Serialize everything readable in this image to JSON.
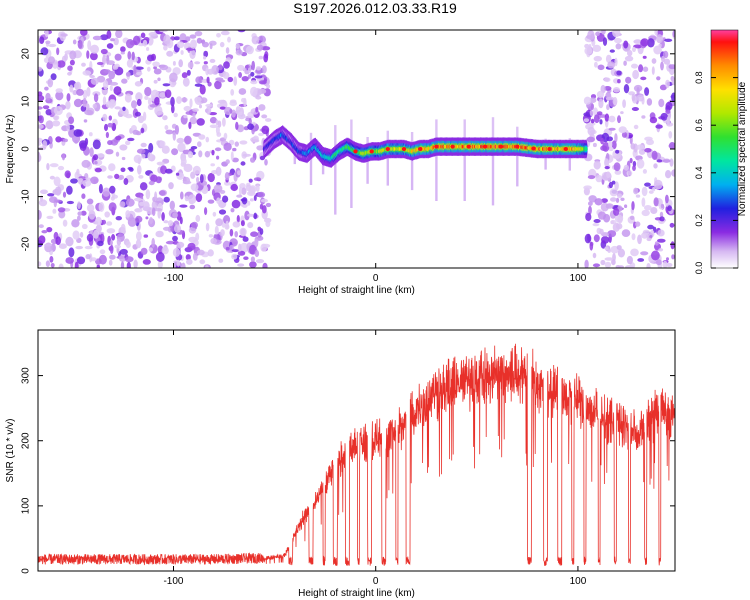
{
  "title": "S197.2026.012.03.33.R19",
  "colors": {
    "snr_line": "#e8302a",
    "frame": "#000000"
  },
  "chart_data": [
    {
      "type": "heatmap",
      "name": "spectrogram",
      "xlabel": "Height of straight line (km)",
      "ylabel": "Frequency (Hz)",
      "xlim": [
        -167,
        148
      ],
      "ylim": [
        -25,
        25
      ],
      "xticks": [
        -100,
        0,
        100
      ],
      "xticklabels": [
        "-100",
        "0",
        "100"
      ],
      "yticks": [
        -20,
        -10,
        0,
        10,
        20
      ],
      "yticklabels": [
        "-20",
        "-10",
        "0",
        "10",
        "20"
      ],
      "colorbar": {
        "label": "Normalized spectral amplitude",
        "range": [
          0,
          1
        ],
        "ticks": [
          0.0,
          0.2,
          0.4,
          0.6,
          0.8
        ],
        "ticklabels": [
          "0.0",
          "0.2",
          "0.4",
          "0.6",
          "0.8"
        ]
      },
      "noise_regions_km": [
        [
          -167,
          -53
        ],
        [
          104,
          148
        ]
      ],
      "signal_track": {
        "x": [
          -55,
          -50,
          -46,
          -42,
          -38,
          -34,
          -30,
          -26,
          -22,
          -18,
          -14,
          -10,
          -6,
          -2,
          2,
          6,
          10,
          14,
          18,
          22,
          26,
          30,
          40,
          50,
          60,
          70,
          80,
          90,
          100,
          104
        ],
        "freq_hz": [
          0,
          2,
          3,
          1.5,
          -0.5,
          -1,
          0.5,
          -1.5,
          -2,
          -0.5,
          0.5,
          -0.5,
          -1,
          -0.5,
          -0.5,
          0,
          0,
          0,
          -0.5,
          0,
          0,
          0.5,
          0.5,
          0.5,
          0.5,
          0.5,
          0,
          0,
          0,
          0
        ],
        "amplitude": [
          0.25,
          0.3,
          0.35,
          0.3,
          0.3,
          0.35,
          0.4,
          0.45,
          0.5,
          0.55,
          0.6,
          0.65,
          0.7,
          0.72,
          0.75,
          0.78,
          0.8,
          0.82,
          0.85,
          0.88,
          0.9,
          0.92,
          0.95,
          0.97,
          0.98,
          0.98,
          0.95,
          0.93,
          0.9,
          0.6
        ]
      }
    },
    {
      "type": "line",
      "name": "snr",
      "xlabel": "Height of straight line (km)",
      "ylabel": "SNR (10 * v/v)",
      "xlim": [
        -167,
        148
      ],
      "ylim": [
        0,
        370
      ],
      "xticks": [
        -100,
        0,
        100
      ],
      "xticklabels": [
        "-100",
        "0",
        "100"
      ],
      "yticks": [
        0,
        100,
        200,
        300
      ],
      "yticklabels": [
        "0",
        "100",
        "200",
        "300"
      ],
      "envelope": {
        "x": [
          -167,
          -120,
          -80,
          -55,
          -45,
          -40,
          -35,
          -30,
          -25,
          -20,
          -15,
          -10,
          -5,
          0,
          5,
          10,
          15,
          20,
          30,
          40,
          50,
          60,
          70,
          75,
          80,
          90,
          100,
          110,
          120,
          130,
          140,
          148
        ],
        "y": [
          18,
          18,
          18,
          20,
          25,
          60,
          90,
          110,
          140,
          170,
          190,
          200,
          205,
          210,
          215,
          225,
          240,
          260,
          285,
          300,
          310,
          315,
          320,
          320,
          300,
          290,
          270,
          250,
          240,
          220,
          260,
          250
        ]
      },
      "dropouts_km": [
        [
          -43,
          -41
        ],
        [
          -33,
          -31
        ],
        [
          -26,
          -25
        ],
        [
          -21,
          -19
        ],
        [
          -15,
          -13
        ],
        [
          -9,
          -8
        ],
        [
          -4,
          -2
        ],
        [
          3,
          5
        ],
        [
          10,
          11
        ],
        [
          15,
          17
        ],
        [
          75,
          77
        ],
        [
          83,
          85
        ],
        [
          90,
          92
        ],
        [
          97,
          98
        ],
        [
          103,
          104
        ],
        [
          110,
          111
        ],
        [
          118,
          119
        ],
        [
          125,
          126
        ],
        [
          133,
          134
        ],
        [
          140,
          141
        ]
      ]
    }
  ]
}
